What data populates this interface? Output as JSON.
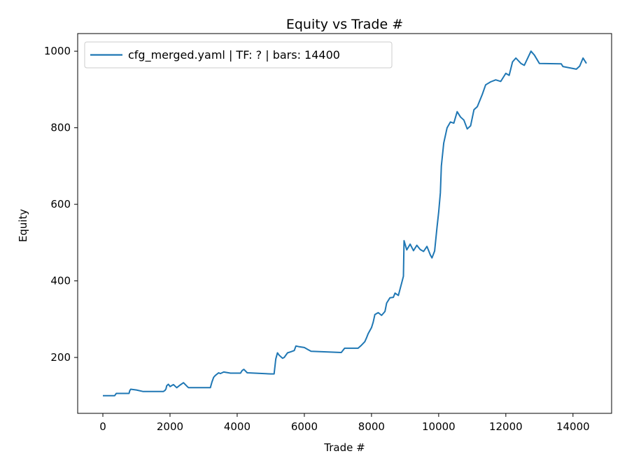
{
  "chart_data": {
    "type": "line",
    "title": "Equity vs Trade #",
    "xlabel": "Trade #",
    "ylabel": "Equity",
    "xlim": [
      -750,
      15150
    ],
    "ylim": [
      54,
      1046
    ],
    "xticks": [
      0,
      2000,
      4000,
      6000,
      8000,
      10000,
      12000,
      14000
    ],
    "yticks": [
      200,
      400,
      600,
      800,
      1000
    ],
    "grid": false,
    "legend_position": "top-left",
    "series": [
      {
        "name": "cfg_merged.yaml | TF: ? | bars: 14400",
        "color": "#1f77b4",
        "points": [
          [
            0,
            100
          ],
          [
            350,
            100
          ],
          [
            400,
            106
          ],
          [
            780,
            106
          ],
          [
            800,
            113
          ],
          [
            830,
            117
          ],
          [
            1000,
            115
          ],
          [
            1200,
            111
          ],
          [
            1800,
            111
          ],
          [
            1850,
            114
          ],
          [
            1880,
            118
          ],
          [
            1900,
            126
          ],
          [
            1950,
            130
          ],
          [
            2000,
            124
          ],
          [
            2100,
            129
          ],
          [
            2200,
            121
          ],
          [
            2300,
            128
          ],
          [
            2400,
            134
          ],
          [
            2500,
            125
          ],
          [
            2550,
            121
          ],
          [
            3200,
            121
          ],
          [
            3250,
            136
          ],
          [
            3300,
            148
          ],
          [
            3350,
            153
          ],
          [
            3450,
            160
          ],
          [
            3500,
            158
          ],
          [
            3600,
            162
          ],
          [
            3800,
            159
          ],
          [
            4100,
            159
          ],
          [
            4150,
            166
          ],
          [
            4200,
            169
          ],
          [
            4300,
            160
          ],
          [
            5000,
            157
          ],
          [
            5100,
            157
          ],
          [
            5150,
            196
          ],
          [
            5200,
            212
          ],
          [
            5250,
            206
          ],
          [
            5350,
            198
          ],
          [
            5400,
            200
          ],
          [
            5500,
            212
          ],
          [
            5600,
            215
          ],
          [
            5700,
            218
          ],
          [
            5750,
            230
          ],
          [
            5850,
            228
          ],
          [
            6000,
            226
          ],
          [
            6100,
            221
          ],
          [
            6200,
            216
          ],
          [
            7100,
            213
          ],
          [
            7200,
            224
          ],
          [
            7600,
            224
          ],
          [
            7700,
            232
          ],
          [
            7800,
            241
          ],
          [
            7850,
            251
          ],
          [
            7900,
            262
          ],
          [
            8000,
            278
          ],
          [
            8050,
            292
          ],
          [
            8100,
            312
          ],
          [
            8200,
            317
          ],
          [
            8300,
            310
          ],
          [
            8400,
            320
          ],
          [
            8450,
            342
          ],
          [
            8550,
            356
          ],
          [
            8650,
            357
          ],
          [
            8700,
            368
          ],
          [
            8800,
            362
          ],
          [
            8900,
            395
          ],
          [
            8950,
            412
          ],
          [
            8970,
            505
          ],
          [
            9050,
            481
          ],
          [
            9150,
            496
          ],
          [
            9250,
            479
          ],
          [
            9350,
            493
          ],
          [
            9450,
            482
          ],
          [
            9550,
            477
          ],
          [
            9650,
            490
          ],
          [
            9750,
            468
          ],
          [
            9800,
            460
          ],
          [
            9880,
            478
          ],
          [
            9950,
            540
          ],
          [
            10000,
            580
          ],
          [
            10050,
            630
          ],
          [
            10080,
            700
          ],
          [
            10150,
            760
          ],
          [
            10250,
            800
          ],
          [
            10350,
            815
          ],
          [
            10450,
            812
          ],
          [
            10550,
            842
          ],
          [
            10650,
            828
          ],
          [
            10750,
            820
          ],
          [
            10850,
            797
          ],
          [
            10950,
            805
          ],
          [
            11050,
            847
          ],
          [
            11150,
            855
          ],
          [
            11300,
            887
          ],
          [
            11400,
            912
          ],
          [
            11550,
            920
          ],
          [
            11700,
            925
          ],
          [
            11850,
            921
          ],
          [
            12000,
            942
          ],
          [
            12100,
            937
          ],
          [
            12200,
            972
          ],
          [
            12300,
            982
          ],
          [
            12450,
            968
          ],
          [
            12550,
            963
          ],
          [
            12750,
            1000
          ],
          [
            12850,
            990
          ],
          [
            13000,
            968
          ],
          [
            13650,
            967
          ],
          [
            13700,
            960
          ],
          [
            14100,
            953
          ],
          [
            14200,
            961
          ],
          [
            14300,
            982
          ],
          [
            14400,
            968
          ]
        ]
      }
    ]
  }
}
